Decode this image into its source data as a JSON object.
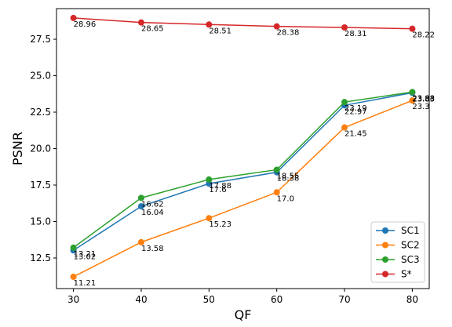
{
  "chart_data": {
    "type": "line",
    "xlabel": "QF",
    "ylabel": "PSNR",
    "x": [
      30,
      40,
      50,
      60,
      70,
      80
    ],
    "xlim": [
      27.5,
      82.5
    ],
    "ylim": [
      10.4,
      29.6
    ],
    "xticks": [
      "30",
      "40",
      "50",
      "60",
      "70",
      "80"
    ],
    "yticks": [
      "12.5",
      "15.0",
      "17.5",
      "20.0",
      "22.5",
      "25.0",
      "27.5"
    ],
    "grid": false,
    "legend_position": "lower-right",
    "series": [
      {
        "name": "SC1",
        "color": "#1f77b4",
        "values": [
          13.02,
          16.04,
          17.6,
          18.38,
          22.97,
          23.83
        ],
        "labels": [
          "13.02",
          "16.04",
          "17.6",
          "18.38",
          "22.97",
          "23.83"
        ]
      },
      {
        "name": "SC2",
        "color": "#ff7f0e",
        "values": [
          11.21,
          13.58,
          15.23,
          17.0,
          21.45,
          23.3
        ],
        "labels": [
          "11.21",
          "13.58",
          "15.23",
          "17.0",
          "21.45",
          "23.3"
        ]
      },
      {
        "name": "SC3",
        "color": "#2ca02c",
        "values": [
          13.21,
          16.62,
          17.88,
          18.55,
          23.19,
          23.88
        ],
        "labels": [
          "13.21",
          "16.62",
          "17.88",
          "18.55",
          "23.19",
          "23.88"
        ]
      },
      {
        "name": "S*",
        "color": "#d62728",
        "values": [
          28.96,
          28.65,
          28.51,
          28.38,
          28.31,
          28.22
        ],
        "labels": [
          "28.96",
          "28.65",
          "28.51",
          "28.38",
          "28.31",
          "28.22"
        ]
      }
    ]
  }
}
